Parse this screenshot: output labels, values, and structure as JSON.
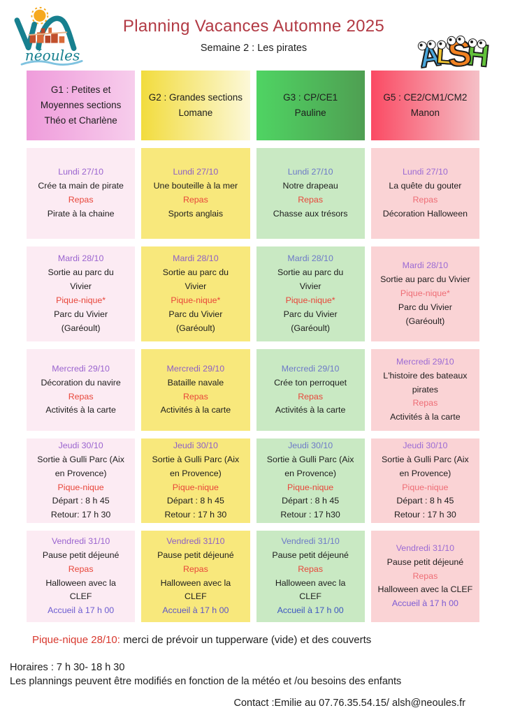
{
  "page": {
    "title": "Planning Vacances Automne 2025",
    "subtitle": "Semaine 2 : Les pirates"
  },
  "logos": {
    "neoules_text": "néoules",
    "alsh_letters": [
      {
        "ch": "A",
        "color": "#4aa7dc"
      },
      {
        "ch": "L",
        "color": "#f3c52f"
      },
      {
        "ch": "S",
        "color": "#f28222"
      },
      {
        "ch": "H",
        "color": "#63c23a"
      }
    ]
  },
  "colors": {
    "title_text": "#b23a44",
    "body_text": "#1d1d1d"
  },
  "table": {
    "columns": [
      {
        "id": "g1",
        "group": "G1 : Petites et Moyennes sections",
        "animator": "Théo et Charlène",
        "header_gradient_from": "#ef9cdb",
        "header_gradient_to": "#f7cdec",
        "cell_bg": "#fcebf3",
        "date_color": "#9a63cf",
        "meal_color": "#e8463a",
        "accent_color": "#6b5bd0"
      },
      {
        "id": "g2",
        "group": "G2 : Grandes sections",
        "animator": "Lomane",
        "header_gradient_from": "#f2dc3e",
        "header_gradient_to": "#fcf8d8",
        "cell_bg": "#f8e87c",
        "date_color": "#8d5fc6",
        "meal_color": "#e8463a",
        "accent_color": "#5b55c8"
      },
      {
        "id": "g3",
        "group": "G3 : CP/CE1",
        "animator": "Pauline",
        "header_gradient_from": "#4fd463",
        "header_gradient_to": "#4f9f52",
        "cell_bg": "#c9e9c3",
        "date_color": "#6d79c8",
        "meal_color": "#e8463a",
        "accent_color": "#3c55c0"
      },
      {
        "id": "g5",
        "group": "G5 : CE2/CM1/CM2",
        "animator": "Manon",
        "header_gradient_from": "#fa4a63",
        "header_gradient_to": "#f5c0c7",
        "cell_bg": "#fad3d5",
        "date_color": "#9b6ad4",
        "meal_color": "#ee6d75",
        "accent_color": "#7b5ad4"
      }
    ],
    "rows": [
      {
        "id": "lundi",
        "cells": [
          [
            {
              "t": "Lundi 27/10",
              "s": "d"
            },
            {
              "t": "Crée ta main de pirate",
              "s": "n"
            },
            {
              "t": "Repas",
              "s": "m"
            },
            {
              "t": "Pirate à la chaine",
              "s": "n"
            }
          ],
          [
            {
              "t": "Lundi 27/10",
              "s": "d"
            },
            {
              "t": "Une bouteille à la mer",
              "s": "n"
            },
            {
              "t": "Repas",
              "s": "m"
            },
            {
              "t": "Sports anglais",
              "s": "n"
            }
          ],
          [
            {
              "t": "Lundi 27/10",
              "s": "d"
            },
            {
              "t": "Notre drapeau",
              "s": "n"
            },
            {
              "t": "Repas",
              "s": "m"
            },
            {
              "t": "Chasse aux trésors",
              "s": "n"
            }
          ],
          [
            {
              "t": "Lundi 27/10",
              "s": "d"
            },
            {
              "t": "La quête du gouter",
              "s": "n"
            },
            {
              "t": "Repas",
              "s": "m"
            },
            {
              "t": "Décoration Halloween",
              "s": "n"
            }
          ]
        ]
      },
      {
        "id": "mardi",
        "cells": [
          [
            {
              "t": "Mardi 28/10",
              "s": "d"
            },
            {
              "t": "Sortie au parc du",
              "s": "n"
            },
            {
              "t": "Vivier",
              "s": "n"
            },
            {
              "t": "Pique-nique*",
              "s": "m"
            },
            {
              "t": "Parc du Vivier",
              "s": "n"
            },
            {
              "t": "(Garéoult)",
              "s": "n"
            }
          ],
          [
            {
              "t": "Mardi 28/10",
              "s": "d"
            },
            {
              "t": "Sortie au parc du",
              "s": "n"
            },
            {
              "t": "Vivier",
              "s": "n"
            },
            {
              "t": "Pique-nique*",
              "s": "m"
            },
            {
              "t": "Parc du Vivier",
              "s": "n"
            },
            {
              "t": "(Garéoult)",
              "s": "n"
            }
          ],
          [
            {
              "t": "Mardi 28/10",
              "s": "d"
            },
            {
              "t": "Sortie au parc du",
              "s": "n"
            },
            {
              "t": "Vivier",
              "s": "n"
            },
            {
              "t": "Pique-nique*",
              "s": "m"
            },
            {
              "t": "Parc du Vivier",
              "s": "n"
            },
            {
              "t": "(Garéoult)",
              "s": "n"
            }
          ],
          [
            {
              "t": "Mardi 28/10",
              "s": "d"
            },
            {
              "t": "Sortie au parc du Vivier",
              "s": "n"
            },
            {
              "t": "Pique-nique*",
              "s": "m"
            },
            {
              "t": "Parc du Vivier",
              "s": "n"
            },
            {
              "t": "(Garéoult)",
              "s": "n"
            }
          ]
        ]
      },
      {
        "id": "mercredi",
        "cells": [
          [
            {
              "t": "Mercredi 29/10",
              "s": "d"
            },
            {
              "t": "Décoration du navire",
              "s": "n"
            },
            {
              "t": "Repas",
              "s": "m"
            },
            {
              "t": "Activités à la carte",
              "s": "n"
            }
          ],
          [
            {
              "t": "Mercredi 29/10",
              "s": "d"
            },
            {
              "t": "Bataille navale",
              "s": "n"
            },
            {
              "t": "Repas",
              "s": "m"
            },
            {
              "t": "Activités à la carte",
              "s": "n"
            }
          ],
          [
            {
              "t": "Mercredi 29/10",
              "s": "d"
            },
            {
              "t": "Crée ton perroquet",
              "s": "n"
            },
            {
              "t": "Repas",
              "s": "m"
            },
            {
              "t": "Activités à la carte",
              "s": "n"
            }
          ],
          [
            {
              "t": "Mercredi 29/10",
              "s": "d"
            },
            {
              "t": "L'histoire des bateaux",
              "s": "n"
            },
            {
              "t": "pirates",
              "s": "n"
            },
            {
              "t": "Repas",
              "s": "m"
            },
            {
              "t": "Activités à la carte",
              "s": "n"
            }
          ]
        ]
      },
      {
        "id": "jeudi",
        "cells": [
          [
            {
              "t": "Jeudi 30/10",
              "s": "d"
            },
            {
              "t": "Sortie à Gulli Parc (Aix",
              "s": "n"
            },
            {
              "t": "en Provence)",
              "s": "n"
            },
            {
              "t": "Pique-nique",
              "s": "m"
            },
            {
              "t": "Départ : 8 h 45",
              "s": "n"
            },
            {
              "t": "Retour: 17 h 30",
              "s": "n"
            }
          ],
          [
            {
              "t": "Jeudi 30/10",
              "s": "d"
            },
            {
              "t": "Sortie à Gulli Parc (Aix",
              "s": "n"
            },
            {
              "t": "en Provence)",
              "s": "n"
            },
            {
              "t": "Pique-nique",
              "s": "m"
            },
            {
              "t": "Départ : 8 h 45",
              "s": "n"
            },
            {
              "t": "Retour : 17 h 30",
              "s": "n"
            }
          ],
          [
            {
              "t": "Jeudi 30/10",
              "s": "d"
            },
            {
              "t": "Sortie à Gulli Parc (Aix",
              "s": "n"
            },
            {
              "t": "en Provence)",
              "s": "n"
            },
            {
              "t": "Pique-nique",
              "s": "m"
            },
            {
              "t": "Départ : 8 h 45",
              "s": "n"
            },
            {
              "t": "Retour : 17 h30",
              "s": "n"
            }
          ],
          [
            {
              "t": "Jeudi 30/10",
              "s": "d"
            },
            {
              "t": "Sortie à Gulli Parc (Aix",
              "s": "n"
            },
            {
              "t": "en Provence)",
              "s": "n"
            },
            {
              "t": "Pique-nique",
              "s": "m"
            },
            {
              "t": "Départ : 8 h 45",
              "s": "n"
            },
            {
              "t": "Retour : 17 h 30",
              "s": "n"
            }
          ]
        ]
      },
      {
        "id": "vendredi",
        "cells": [
          [
            {
              "t": "Vendredi 31/10",
              "s": "d"
            },
            {
              "t": "Pause petit déjeuné",
              "s": "n"
            },
            {
              "t": "Repas",
              "s": "m"
            },
            {
              "t": "Halloween avec la",
              "s": "n"
            },
            {
              "t": "CLEF",
              "s": "n"
            },
            {
              "t": "Accueil à 17 h 00",
              "s": "a"
            }
          ],
          [
            {
              "t": "Vendredi 31/10",
              "s": "d"
            },
            {
              "t": "Pause petit déjeuné",
              "s": "n"
            },
            {
              "t": "Repas",
              "s": "m"
            },
            {
              "t": "Halloween avec la",
              "s": "n"
            },
            {
              "t": "CLEF",
              "s": "n"
            },
            {
              "t": "Accueil à 17 h 00",
              "s": "a"
            }
          ],
          [
            {
              "t": "Vendredi 31/10",
              "s": "d"
            },
            {
              "t": "Pause petit déjeuné",
              "s": "n"
            },
            {
              "t": "Repas",
              "s": "m"
            },
            {
              "t": "Halloween avec la",
              "s": "n"
            },
            {
              "t": "CLEF",
              "s": "n"
            },
            {
              "t": "Accueil à 17 h 00",
              "s": "a"
            }
          ],
          [
            {
              "t": "Vendredi 31/10",
              "s": "d"
            },
            {
              "t": "Pause petit déjeuné",
              "s": "n"
            },
            {
              "t": "Repas",
              "s": "m"
            },
            {
              "t": "Halloween avec la CLEF",
              "s": "n"
            },
            {
              "t": "Accueil à 17 h 00",
              "s": "a"
            }
          ]
        ]
      }
    ]
  },
  "footer": {
    "note_label": "Pique-nique 28/10:",
    "note_text": "merci de prévoir un tupperware (vide) et des couverts",
    "hours": "Horaires : 7 h 30- 18 h 30",
    "disclaimer": "Les plannings peuvent être modifiés en fonction de la météo et /ou besoins des enfants",
    "contact": "Contact :Emilie au 07.76.35.54.15/ alsh@neoules.fr"
  }
}
